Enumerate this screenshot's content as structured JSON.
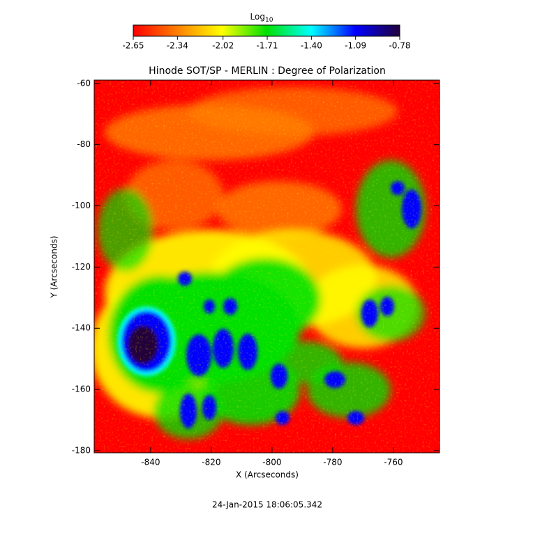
{
  "chart_data": {
    "type": "heatmap",
    "title": "Hinode SOT/SP - MERLIN : Degree of Polarization",
    "xlabel": "X (Arcseconds)",
    "ylabel": "Y (Arcseconds)",
    "xlim": [
      -858.6,
      -744.8
    ],
    "xticks": [
      -840,
      -820,
      -800,
      -780,
      -760
    ],
    "ylim": [
      -180.7,
      -58.9
    ],
    "yticks": [
      -60,
      -80,
      -100,
      -120,
      -140,
      -160,
      -180
    ],
    "colorbar_label": "Log",
    "colorbar_label_sub": "10",
    "clim": [
      -2.65,
      -0.78
    ],
    "cticks": [
      -2.65,
      -2.34,
      -2.02,
      -1.71,
      {
        "value": -1.4,
        "label": "-1.40"
      },
      -1.09,
      -0.78
    ],
    "colormap": [
      "#ff0000",
      "#ff8000",
      "#ffff00",
      "#00e000",
      "#00ffff",
      "#0000ff",
      "#20003a"
    ],
    "date": "24-Jan-2015 18:06:05.342"
  }
}
